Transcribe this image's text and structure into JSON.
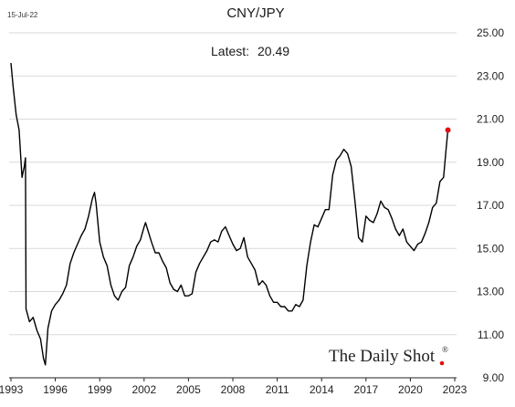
{
  "header": {
    "date": "15-Jul-22",
    "title": "CNY/JPY",
    "latest_label": "Latest:",
    "latest_value": "20.49"
  },
  "watermark": {
    "text": "The Daily Shot",
    "registered": "®"
  },
  "colors": {
    "line": "#000000",
    "grid": "#d9d9d9",
    "marker": "#e01010",
    "axis": "#222222"
  },
  "chart_data": {
    "type": "line",
    "title": "CNY/JPY",
    "xlabel": "",
    "ylabel": "",
    "xlim": [
      1993.0,
      2023.0
    ],
    "ylim": [
      9.0,
      25.0
    ],
    "grid": "horizontal",
    "y_ticks": [
      9,
      11,
      13,
      15,
      17,
      19,
      21,
      23,
      25
    ],
    "y_tick_labels": [
      "9.00",
      "11.00",
      "13.00",
      "15.00",
      "17.00",
      "19.00",
      "21.00",
      "23.00",
      "25.00"
    ],
    "x_ticks": [
      1993,
      1996,
      1999,
      2002,
      2005,
      2008,
      2011,
      2014,
      2017,
      2020,
      2023
    ],
    "x_tick_labels": [
      "1993",
      "1996",
      "1999",
      "2002",
      "2005",
      "2008",
      "2011",
      "2014",
      "2017",
      "2020",
      "2023"
    ],
    "series": [
      {
        "x": [
          1993.0,
          1993.15,
          1993.35,
          1993.55,
          1993.75,
          1993.9,
          1993.98,
          1994.02,
          1994.25,
          1994.5,
          1994.75,
          1995.0,
          1995.2,
          1995.33,
          1995.5,
          1995.75,
          1996.0,
          1996.25,
          1996.5,
          1996.75,
          1997.0,
          1997.25,
          1997.5,
          1997.75,
          1998.0,
          1998.25,
          1998.5,
          1998.65,
          1998.75,
          1999.0,
          1999.25,
          1999.5,
          1999.75,
          2000.0,
          2000.25,
          2000.5,
          2000.75,
          2001.0,
          2001.25,
          2001.5,
          2001.75,
          2002.0,
          2002.1,
          2002.5,
          2002.75,
          2003.0,
          2003.25,
          2003.5,
          2003.75,
          2004.0,
          2004.25,
          2004.5,
          2004.75,
          2005.0,
          2005.25,
          2005.5,
          2005.75,
          2006.0,
          2006.25,
          2006.5,
          2006.75,
          2007.0,
          2007.25,
          2007.5,
          2007.75,
          2008.0,
          2008.25,
          2008.5,
          2008.75,
          2009.0,
          2009.25,
          2009.5,
          2009.75,
          2010.0,
          2010.25,
          2010.5,
          2010.75,
          2011.0,
          2011.25,
          2011.5,
          2011.75,
          2012.0,
          2012.25,
          2012.5,
          2012.75,
          2013.0,
          2013.25,
          2013.5,
          2013.75,
          2014.0,
          2014.25,
          2014.5,
          2014.75,
          2015.0,
          2015.25,
          2015.5,
          2015.75,
          2016.0,
          2016.25,
          2016.5,
          2016.75,
          2017.0,
          2017.25,
          2017.5,
          2017.75,
          2018.0,
          2018.25,
          2018.5,
          2018.75,
          2019.0,
          2019.25,
          2019.5,
          2019.75,
          2020.0,
          2020.25,
          2020.5,
          2020.75,
          2021.0,
          2021.25,
          2021.5,
          2021.75,
          2022.0,
          2022.25,
          2022.4,
          2022.54
        ],
        "y": [
          23.6,
          22.5,
          21.2,
          20.5,
          18.3,
          18.8,
          19.2,
          12.2,
          11.6,
          11.8,
          11.2,
          10.8,
          9.9,
          9.6,
          11.3,
          12.1,
          12.4,
          12.6,
          12.9,
          13.3,
          14.3,
          14.8,
          15.2,
          15.6,
          15.9,
          16.5,
          17.3,
          17.6,
          17.1,
          15.3,
          14.6,
          14.2,
          13.3,
          12.8,
          12.6,
          13.0,
          13.2,
          14.2,
          14.6,
          15.1,
          15.4,
          16.0,
          16.2,
          15.3,
          14.8,
          14.8,
          14.4,
          14.1,
          13.4,
          13.1,
          13.0,
          13.3,
          12.8,
          12.8,
          12.9,
          13.9,
          14.3,
          14.6,
          14.9,
          15.3,
          15.4,
          15.3,
          15.8,
          16.0,
          15.6,
          15.2,
          14.9,
          15.0,
          15.5,
          14.6,
          14.3,
          14.0,
          13.3,
          13.5,
          13.3,
          12.8,
          12.5,
          12.5,
          12.3,
          12.3,
          12.1,
          12.1,
          12.4,
          12.3,
          12.6,
          14.2,
          15.3,
          16.1,
          16.0,
          16.4,
          16.8,
          16.8,
          18.4,
          19.1,
          19.3,
          19.6,
          19.4,
          18.8,
          17.2,
          15.5,
          15.3,
          16.5,
          16.3,
          16.2,
          16.6,
          17.2,
          16.9,
          16.8,
          16.4,
          15.9,
          15.6,
          15.9,
          15.3,
          15.1,
          14.9,
          15.2,
          15.3,
          15.7,
          16.2,
          16.9,
          17.1,
          18.1,
          18.3,
          19.5,
          20.49
        ]
      }
    ],
    "latest_point": {
      "x": 2022.54,
      "y": 20.49
    }
  }
}
